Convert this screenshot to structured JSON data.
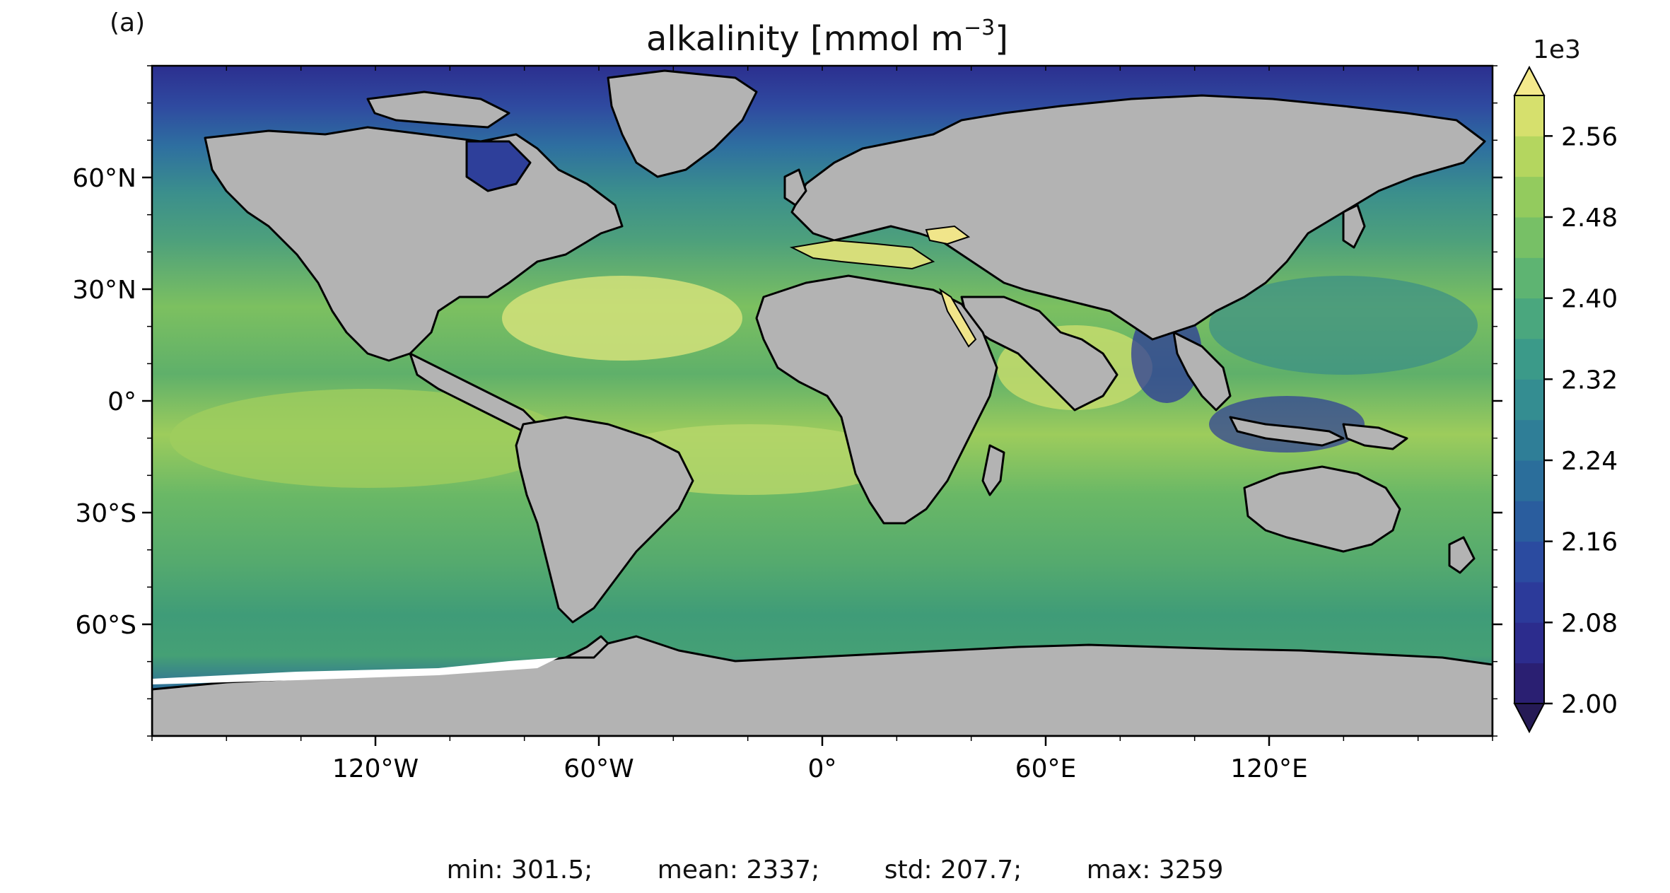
{
  "panel_label": "(a)",
  "title": {
    "main": "alkalinity [mmol m",
    "sup": "−3",
    "end": "]"
  },
  "colorbar": {
    "exponent": "1e3",
    "ticks": [
      "2.00",
      "2.08",
      "2.16",
      "2.24",
      "2.32",
      "2.40",
      "2.48",
      "2.56"
    ],
    "range": [
      2.0,
      2.6
    ],
    "levels": 15,
    "colormap": "haline",
    "extend": "both"
  },
  "axes": {
    "x_ticks": [
      "120°W",
      "60°W",
      "0°",
      "60°E",
      "120°E"
    ],
    "y_ticks": [
      "60°N",
      "30°N",
      "0°",
      "30°S",
      "60°S"
    ],
    "lon_range": [
      -180,
      180
    ],
    "lat_range": [
      -90,
      90
    ]
  },
  "stats": {
    "min": "min: 301.5;",
    "mean": "mean: 2337;",
    "std": "std: 207.7;",
    "max": "max: 3259"
  },
  "colors": {
    "land": "#b3b3b3",
    "coast": "#000000",
    "missing": "#ffffff"
  }
}
